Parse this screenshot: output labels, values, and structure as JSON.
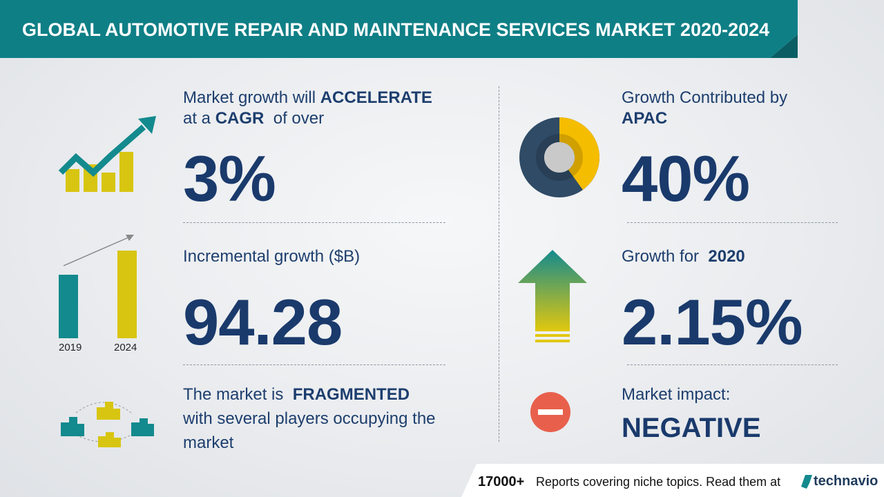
{
  "header": {
    "title": "GLOBAL AUTOMOTIVE REPAIR AND MAINTENANCE SERVICES MARKET 2020-2024"
  },
  "cagr": {
    "text_1": "Market growth will",
    "emphasis_1": "ACCELERATE",
    "text_2": "at a",
    "emphasis_2": "CAGR",
    "text_3": "of over",
    "value": "3%"
  },
  "incremental_growth": {
    "label": "Incremental growth ($B)",
    "value": "94.28",
    "icon_labels": [
      "2019",
      "2024"
    ]
  },
  "market_structure": {
    "text_1": "The market is",
    "emphasis": "FRAGMENTED",
    "text_2": "with several players occupying the",
    "text_3": "market"
  },
  "regional_growth": {
    "label": "Growth Contributed by",
    "region": "APAC",
    "value": "40%"
  },
  "yoy_growth": {
    "label": "Growth for",
    "year": "2020",
    "value": "2.15%"
  },
  "market_impact": {
    "label": "Market impact:",
    "value": "NEGATIVE"
  },
  "footer": {
    "count": "17000+",
    "text": "Reports covering niche topics. Read them at",
    "brand": "technavio"
  }
}
